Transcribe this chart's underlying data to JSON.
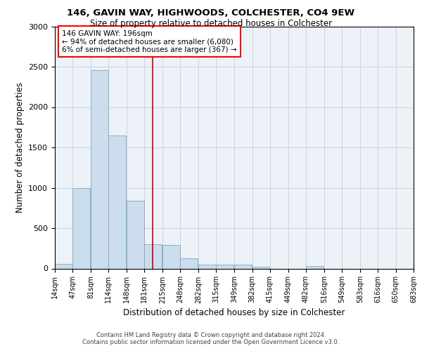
{
  "title1": "146, GAVIN WAY, HIGHWOODS, COLCHESTER, CO4 9EW",
  "title2": "Size of property relative to detached houses in Colchester",
  "xlabel": "Distribution of detached houses by size in Colchester",
  "ylabel": "Number of detached properties",
  "footer1": "Contains HM Land Registry data © Crown copyright and database right 2024.",
  "footer2": "Contains public sector information licensed under the Open Government Licence v3.0.",
  "annotation_line1": "146 GAVIN WAY: 196sqm",
  "annotation_line2": "← 94% of detached houses are smaller (6,080)",
  "annotation_line3": "6% of semi-detached houses are larger (367) →",
  "bar_color": "#ccdded",
  "bar_edge_color": "#7aaabb",
  "background_color": "#ffffff",
  "plot_bg_color": "#edf2f8",
  "grid_color": "#c8d4e4",
  "bins": [
    14,
    47,
    81,
    114,
    148,
    181,
    215,
    248,
    282,
    315,
    349,
    382,
    415,
    449,
    482,
    516,
    549,
    583,
    616,
    650,
    683
  ],
  "counts": [
    55,
    1000,
    2460,
    1650,
    840,
    300,
    290,
    130,
    50,
    50,
    45,
    20,
    0,
    0,
    30,
    0,
    0,
    0,
    0,
    0
  ],
  "ylim": [
    0,
    3000
  ],
  "property_size": 196,
  "vline_color": "#cc0000"
}
